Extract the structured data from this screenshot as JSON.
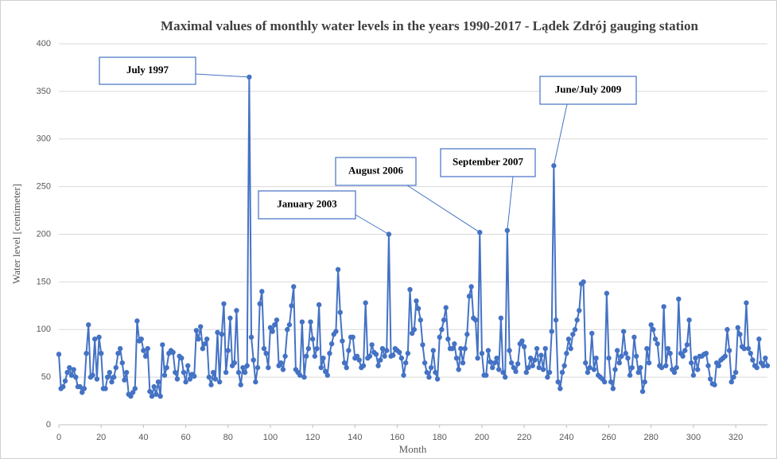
{
  "chart_data": {
    "type": "line",
    "title": "Maximal values of monthly water levels in the years 1990-2017 - Lądek Zdrój gauging station",
    "xlabel": "Month",
    "ylabel": "Water level [centimeter]",
    "xlim": [
      0,
      335
    ],
    "xticks": [
      0,
      20,
      40,
      60,
      80,
      100,
      120,
      140,
      160,
      180,
      200,
      220,
      240,
      260,
      280,
      300,
      320
    ],
    "ylim": [
      0,
      400
    ],
    "yticks": [
      0,
      50,
      100,
      150,
      200,
      250,
      300,
      350,
      400
    ],
    "grid": true,
    "annotations": [
      "July 1997",
      "January 2003",
      "August 2006",
      "September 2007",
      "June/July 2009"
    ],
    "x": [
      0,
      1,
      2,
      3,
      4,
      5,
      6,
      7,
      8,
      9,
      10,
      11,
      12,
      13,
      14,
      15,
      16,
      17,
      18,
      19,
      20,
      21,
      22,
      23,
      24,
      25,
      26,
      27,
      28,
      29,
      30,
      31,
      32,
      33,
      34,
      35,
      36,
      37,
      38,
      39,
      40,
      41,
      42,
      43,
      44,
      45,
      46,
      47,
      48,
      49,
      50,
      51,
      52,
      53,
      54,
      55,
      56,
      57,
      58,
      59,
      60,
      61,
      62,
      63,
      64,
      65,
      66,
      67,
      68,
      69,
      70,
      71,
      72,
      73,
      74,
      75,
      76,
      77,
      78,
      79,
      80,
      81,
      82,
      83,
      84,
      85,
      86,
      87,
      88,
      89,
      90,
      91,
      92,
      93,
      94,
      95,
      96,
      97,
      98,
      99,
      100,
      101,
      102,
      103,
      104,
      105,
      106,
      107,
      108,
      109,
      110,
      111,
      112,
      113,
      114,
      115,
      116,
      117,
      118,
      119,
      120,
      121,
      122,
      123,
      124,
      125,
      126,
      127,
      128,
      129,
      130,
      131,
      132,
      133,
      134,
      135,
      136,
      137,
      138,
      139,
      140,
      141,
      142,
      143,
      144,
      145,
      146,
      147,
      148,
      149,
      150,
      151,
      152,
      153,
      154,
      155,
      156,
      157,
      158,
      159,
      160,
      161,
      162,
      163,
      164,
      165,
      166,
      167,
      168,
      169,
      170,
      171,
      172,
      173,
      174,
      175,
      176,
      177,
      178,
      179,
      180,
      181,
      182,
      183,
      184,
      185,
      186,
      187,
      188,
      189,
      190,
      191,
      192,
      193,
      194,
      195,
      196,
      197,
      198,
      199,
      200,
      201,
      202,
      203,
      204,
      205,
      206,
      207,
      208,
      209,
      210,
      211,
      212,
      213,
      214,
      215,
      216,
      217,
      218,
      219,
      220,
      221,
      222,
      223,
      224,
      225,
      226,
      227,
      228,
      229,
      230,
      231,
      232,
      233,
      234,
      235,
      236,
      237,
      238,
      239,
      240,
      241,
      242,
      243,
      244,
      245,
      246,
      247,
      248,
      249,
      250,
      251,
      252,
      253,
      254,
      255,
      256,
      257,
      258,
      259,
      260,
      261,
      262,
      263,
      264,
      265,
      266,
      267,
      268,
      269,
      270,
      271,
      272,
      273,
      274,
      275,
      276,
      277,
      278,
      279,
      280,
      281,
      282,
      283,
      284,
      285,
      286,
      287,
      288,
      289,
      290,
      291,
      292,
      293,
      294,
      295,
      296,
      297,
      298,
      299,
      300,
      301,
      302,
      303,
      304,
      305,
      306,
      307,
      308,
      309,
      310,
      311,
      312,
      313,
      314,
      315,
      316,
      317,
      318,
      319,
      320,
      321,
      322,
      323,
      324,
      325,
      326,
      327,
      328,
      329,
      330,
      331,
      332,
      333,
      334,
      335
    ],
    "series": [
      {
        "color": "#4472c4",
        "values": [
          74,
          38,
          40,
          46,
          55,
          60,
          52,
          58,
          50,
          40,
          40,
          34,
          38,
          75,
          105,
          50,
          52,
          90,
          48,
          92,
          75,
          38,
          38,
          50,
          55,
          45,
          50,
          60,
          75,
          80,
          65,
          47,
          55,
          32,
          30,
          34,
          38,
          109,
          88,
          90,
          78,
          72,
          80,
          35,
          30,
          40,
          32,
          45,
          30,
          84,
          52,
          60,
          75,
          78,
          76,
          55,
          48,
          72,
          70,
          55,
          45,
          62,
          48,
          53,
          51,
          99,
          90,
          103,
          80,
          85,
          90,
          50,
          42,
          55,
          48,
          97,
          45,
          95,
          127,
          55,
          78,
          112,
          62,
          65,
          120,
          55,
          42,
          60,
          55,
          62,
          365,
          92,
          68,
          45,
          60,
          127,
          140,
          80,
          75,
          60,
          102,
          98,
          105,
          110,
          62,
          65,
          58,
          72,
          100,
          105,
          125,
          145,
          58,
          55,
          52,
          108,
          50,
          72,
          80,
          108,
          90,
          72,
          80,
          126,
          60,
          70,
          56,
          52,
          75,
          85,
          95,
          98,
          163,
          118,
          88,
          65,
          60,
          78,
          92,
          92,
          70,
          72,
          68,
          60,
          62,
          128,
          70,
          72,
          84,
          76,
          74,
          62,
          68,
          80,
          72,
          78,
          200,
          72,
          73,
          80,
          78,
          76,
          70,
          52,
          65,
          75,
          142,
          96,
          100,
          130,
          122,
          110,
          84,
          65,
          55,
          50,
          60,
          78,
          55,
          48,
          92,
          100,
          110,
          123,
          90,
          80,
          80,
          85,
          70,
          58,
          80,
          65,
          80,
          95,
          135,
          145,
          112,
          110,
          70,
          202,
          75,
          52,
          52,
          78,
          66,
          60,
          65,
          70,
          58,
          112,
          55,
          50,
          204,
          78,
          65,
          60,
          56,
          64,
          85,
          88,
          82,
          55,
          60,
          70,
          62,
          68,
          80,
          60,
          73,
          58,
          80,
          50,
          55,
          98,
          272,
          110,
          45,
          38,
          55,
          62,
          75,
          90,
          80,
          95,
          100,
          110,
          120,
          148,
          150,
          65,
          55,
          60,
          96,
          58,
          70,
          52,
          50,
          48,
          45,
          138,
          70,
          45,
          38,
          58,
          78,
          65,
          72,
          98,
          75,
          70,
          52,
          60,
          92,
          72,
          55,
          60,
          35,
          45,
          80,
          65,
          105,
          100,
          90,
          85,
          62,
          60,
          124,
          62,
          80,
          75,
          58,
          55,
          60,
          132,
          75,
          72,
          78,
          84,
          110,
          65,
          52,
          70,
          58,
          72,
          72,
          74,
          75,
          62,
          48,
          43,
          42,
          65,
          62,
          68,
          70,
          72,
          100,
          78,
          45,
          50,
          55,
          102,
          95,
          82,
          80,
          128,
          80,
          75,
          68,
          62,
          60,
          90,
          65,
          62,
          70,
          62
        ]
      }
    ]
  }
}
